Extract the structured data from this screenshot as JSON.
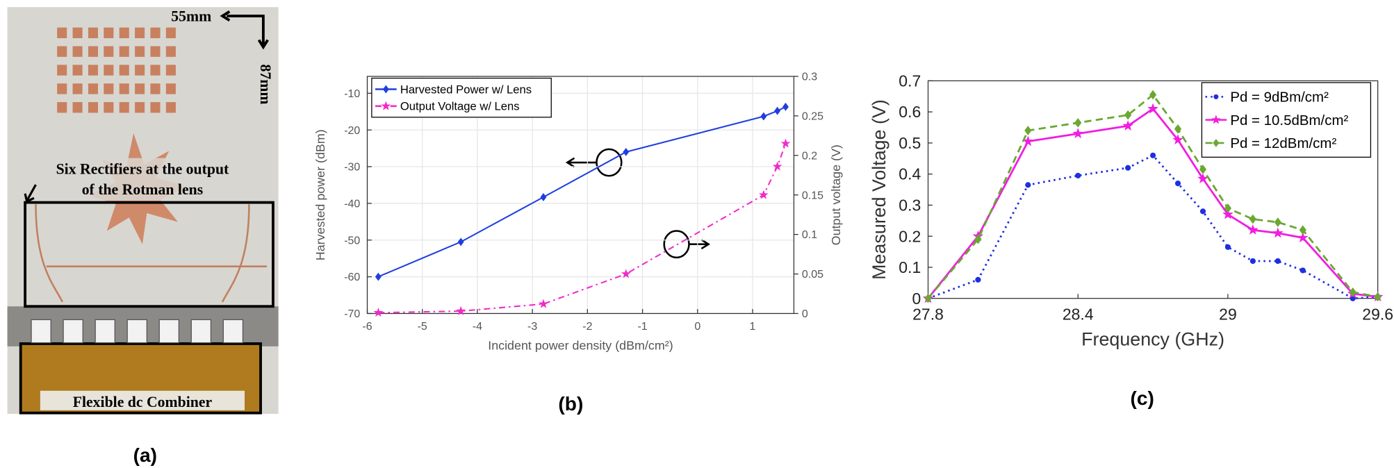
{
  "panel_a": {
    "width_label": "55mm",
    "height_label": "87mm",
    "rectifier_note": [
      "Six Rectifiers at the output",
      "of the Rotman lens"
    ],
    "combiner_label": "Flexible dc Combiner",
    "caption": "(a)"
  },
  "chart_data": [
    {
      "type": "line",
      "caption": "(b)",
      "xlabel": "Incident power density (dBm/cm²)",
      "ylabel": "Harvested power (dBm)",
      "y2label": "Output voltage (V)",
      "x": [
        -5.8,
        -4.3,
        -2.8,
        -1.3,
        1.2,
        1.45,
        1.6
      ],
      "xlim": [
        -6,
        1.75
      ],
      "xticks": [
        -6,
        -5,
        -4,
        -3,
        -2,
        -1,
        0,
        1
      ],
      "ylim": [
        -70,
        -5.4
      ],
      "yticks": [
        -70,
        -60,
        -50,
        -40,
        -30,
        -20,
        -10
      ],
      "y2lim": [
        0,
        0.3
      ],
      "y2ticks": [
        0,
        0.05,
        0.1,
        0.15,
        0.2,
        0.25,
        0.3
      ],
      "grid": true,
      "legend": "upper left",
      "series": [
        {
          "name": "Harvested Power w/ Lens",
          "color": "#1f3fe0",
          "marker": "diamond",
          "linestyle": "solid",
          "values": [
            -60,
            -50.5,
            -38.3,
            -26,
            -16.3,
            -14.8,
            -13.7
          ]
        },
        {
          "name": "Output Voltage w/ Lens",
          "color": "#f02cc8",
          "marker": "star",
          "linestyle": "dashdot",
          "axis": "y2",
          "values": [
            0.001,
            0.003,
            0.012,
            0.05,
            0.15,
            0.186,
            0.215
          ]
        }
      ]
    },
    {
      "type": "line",
      "caption": "(c)",
      "xlabel": "Frequency (GHz)",
      "ylabel": "Measured Voltage (V)",
      "x": [
        27.8,
        28.0,
        28.2,
        28.4,
        28.6,
        28.7,
        28.8,
        28.9,
        29.0,
        29.1,
        29.2,
        29.3,
        29.5,
        29.6
      ],
      "xlim": [
        27.8,
        29.6
      ],
      "xticks": [
        27.8,
        28.4,
        29,
        29.6
      ],
      "ylim": [
        0,
        0.7
      ],
      "yticks": [
        0,
        0.1,
        0.2,
        0.3,
        0.4,
        0.5,
        0.6,
        0.7
      ],
      "grid": false,
      "legend": "upper right",
      "series": [
        {
          "name": "Pd = 9dBm/cm²",
          "color": "#1f2fe0",
          "marker": "circle",
          "linestyle": "dotted",
          "values": [
            0,
            0.06,
            0.365,
            0.395,
            0.42,
            0.46,
            0.37,
            0.28,
            0.165,
            0.12,
            0.12,
            0.09,
            0,
            0.005
          ]
        },
        {
          "name": "Pd = 10.5dBm/cm²",
          "color": "#f01ee0",
          "marker": "star",
          "linestyle": "solid",
          "values": [
            0,
            0.2,
            0.505,
            0.53,
            0.555,
            0.61,
            0.51,
            0.385,
            0.27,
            0.22,
            0.21,
            0.195,
            0.015,
            0.005
          ]
        },
        {
          "name": "Pd = 12dBm/cm²",
          "color": "#6aa832",
          "marker": "diamond",
          "linestyle": "dashed",
          "values": [
            0,
            0.19,
            0.54,
            0.565,
            0.59,
            0.655,
            0.545,
            0.415,
            0.29,
            0.255,
            0.245,
            0.22,
            0.02,
            0.005
          ]
        }
      ]
    }
  ]
}
